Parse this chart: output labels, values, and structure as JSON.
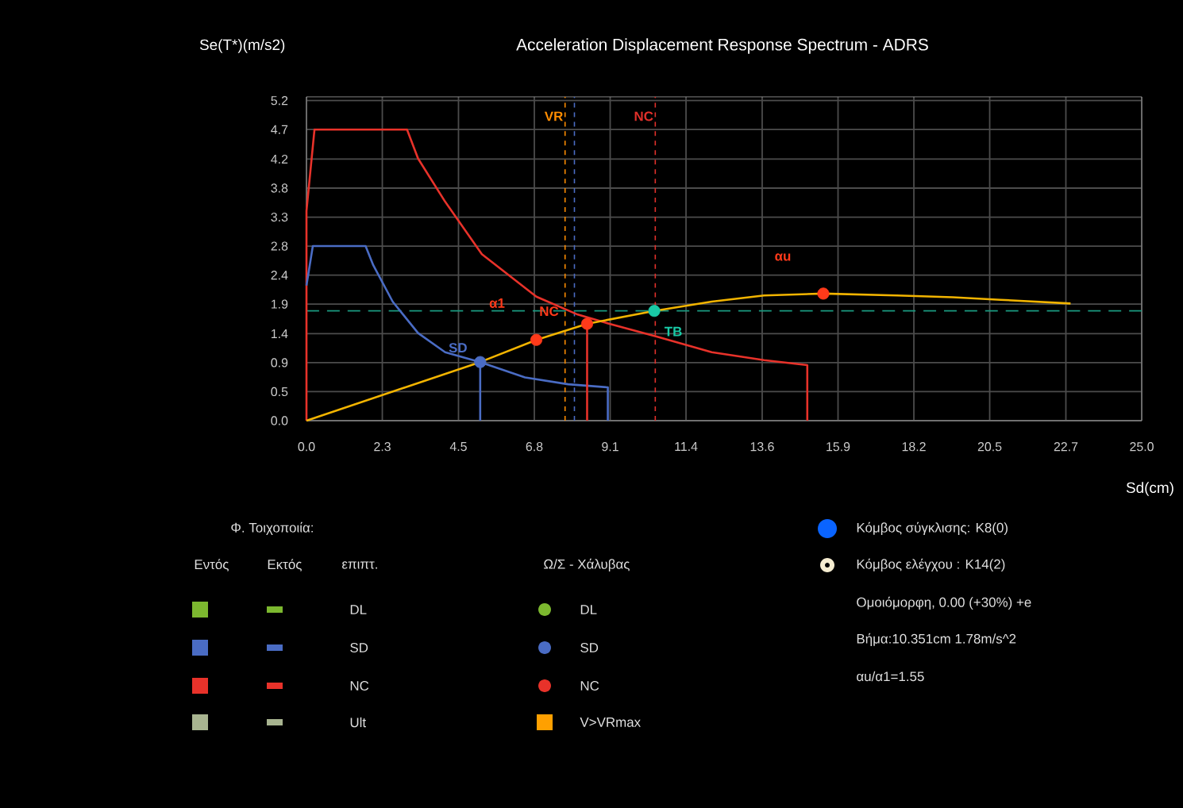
{
  "chart_data": {
    "type": "line",
    "title": "Acceleration Displacement Response Spectrum - ADRS",
    "xlabel": "Sd(cm)",
    "ylabel": "Se(T*)(m/s2)",
    "xlim": [
      0,
      25
    ],
    "ylim": [
      0,
      5.25
    ],
    "xticks": [
      {
        "value": 0,
        "label": "0.0"
      },
      {
        "value": 2.27,
        "label": "2.3"
      },
      {
        "value": 4.55,
        "label": "4.5"
      },
      {
        "value": 6.82,
        "label": "6.8"
      },
      {
        "value": 9.09,
        "label": "9.1"
      },
      {
        "value": 11.36,
        "label": "11.4"
      },
      {
        "value": 13.64,
        "label": "13.6"
      },
      {
        "value": 15.91,
        "label": "15.9"
      },
      {
        "value": 18.18,
        "label": "18.2"
      },
      {
        "value": 20.45,
        "label": "20.5"
      },
      {
        "value": 22.73,
        "label": "22.7"
      },
      {
        "value": 25,
        "label": "25.0"
      }
    ],
    "yticks": [
      {
        "value": 0,
        "label": "0.0"
      },
      {
        "value": 0.47,
        "label": "0.5"
      },
      {
        "value": 0.94,
        "label": "0.9"
      },
      {
        "value": 1.41,
        "label": "1.4"
      },
      {
        "value": 1.89,
        "label": "1.9"
      },
      {
        "value": 2.36,
        "label": "2.4"
      },
      {
        "value": 2.83,
        "label": "2.8"
      },
      {
        "value": 3.3,
        "label": "3.3"
      },
      {
        "value": 3.77,
        "label": "3.8"
      },
      {
        "value": 4.24,
        "label": "4.2"
      },
      {
        "value": 4.72,
        "label": "4.7"
      },
      {
        "value": 5.19,
        "label": "5.2"
      }
    ],
    "grid": true,
    "series": [
      {
        "type": "line",
        "color": "#e8322a",
        "x": [
          0,
          0,
          0.24,
          3.01,
          3.34,
          4.15,
          5.25,
          6.88,
          8.12,
          9.07,
          10.5,
          12.13,
          13.7,
          14.99,
          14.99
        ],
        "values": [
          0,
          3.4,
          4.72,
          4.72,
          4.25,
          3.55,
          2.7,
          2.01,
          1.72,
          1.57,
          1.36,
          1.11,
          0.98,
          0.9,
          0
        ]
      },
      {
        "type": "line",
        "color": "#4a6cc4",
        "x": [
          0,
          0.19,
          1.77,
          2.0,
          2.58,
          3.34,
          4.15,
          5.2,
          6.54,
          7.83,
          9.02,
          9.02
        ],
        "values": [
          2.19,
          2.83,
          2.83,
          2.52,
          1.93,
          1.42,
          1.11,
          0.95,
          0.7,
          0.59,
          0.54,
          0
        ]
      },
      {
        "type": "line",
        "color": "#f2b400",
        "x": [
          0,
          5.2,
          6.88,
          8.4,
          10.41,
          12.13,
          13.7,
          15.47,
          17.67,
          19.34,
          20.77,
          22.87
        ],
        "values": [
          0,
          0.95,
          1.31,
          1.57,
          1.78,
          1.93,
          2.03,
          2.06,
          2.03,
          2.0,
          1.96,
          1.9
        ]
      },
      {
        "type": "line",
        "color": "#4a6cc4",
        "x": [
          5.2,
          5.2
        ],
        "values": [
          0,
          0.95
        ]
      },
      {
        "type": "line",
        "color": "#e8322a",
        "x": [
          8.4,
          8.4
        ],
        "values": [
          0,
          1.57
        ]
      },
      {
        "type": "scatter",
        "marker": "circle",
        "color": "#4a6cc4",
        "x": [
          5.2
        ],
        "values": [
          0.95
        ]
      },
      {
        "type": "scatter",
        "marker": "circle",
        "color": "#ff3a1a",
        "x": [
          6.88
        ],
        "values": [
          1.31
        ]
      },
      {
        "type": "scatter",
        "marker": "circle",
        "color": "#ff3a1a",
        "x": [
          8.4
        ],
        "values": [
          1.57
        ]
      },
      {
        "type": "scatter",
        "marker": "circle",
        "color": "#19c9a6",
        "x": [
          10.41
        ],
        "values": [
          1.78
        ]
      },
      {
        "type": "scatter",
        "marker": "circle",
        "color": "#ff3a1a",
        "x": [
          15.47
        ],
        "values": [
          2.06
        ]
      }
    ],
    "ref_lines": [
      {
        "axis": "x",
        "value": 7.74,
        "label": "VR",
        "color": "#ff8c00",
        "line_style": "dashed"
      },
      {
        "axis": "x",
        "value": 8.02,
        "color": "#4a6cc4",
        "line_style": "dashed"
      },
      {
        "axis": "x",
        "value": 10.44,
        "label": "NC",
        "color": "#e0302a",
        "line_style": "dashed"
      },
      {
        "axis": "y",
        "value": 1.78,
        "color": "#1a9a80",
        "line_style": "dashed"
      }
    ],
    "annotations": [
      "Φ. Τοιχοποιία:",
      "Εντός",
      "Εκτός",
      "επιπτ.",
      "DL",
      "SD",
      "NC",
      "Ult",
      "Ω/Σ - Χάλυβας",
      "DL",
      "SD",
      "NC",
      "V>VRmax",
      "Κόμβος σύγκλισης: K8(0)",
      "Κόμβος ελέγχου : K14(2)",
      "Ομοιόμορφη, 0.00 (+30%) +e",
      "Βήμα:10.351cm 1.78m/s^2",
      "αu/α1=1.55",
      "α1",
      "αu",
      {
        "text": "SD",
        "x": 5.2,
        "y": 0.95
      },
      {
        "text": "NC",
        "x": 6.88,
        "y": 1.31
      },
      {
        "text": "TB",
        "x": 10.41,
        "y": 1.78
      }
    ]
  }
}
